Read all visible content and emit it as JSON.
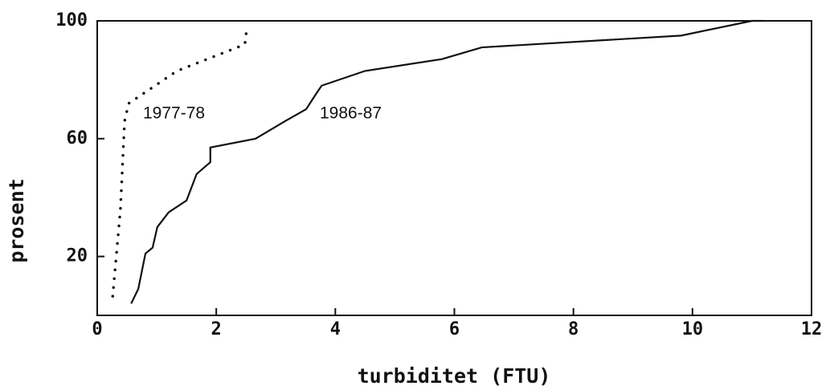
{
  "chart_data": {
    "type": "line",
    "xlabel": "turbiditet (FTU)",
    "ylabel": "prosent",
    "xlim": [
      0,
      12
    ],
    "ylim": [
      0,
      100
    ],
    "xticks": [
      0,
      2,
      4,
      6,
      8,
      10,
      12
    ],
    "yticks": [
      20,
      60,
      100
    ],
    "series": [
      {
        "name": "1977-78",
        "color": "#111111",
        "style": "dotted",
        "x": [
          0.26,
          0.39,
          0.46,
          0.53,
          1.34,
          2.48,
          2.51
        ],
        "values": [
          6.5,
          36,
          66,
          72,
          83,
          92,
          97
        ]
      },
      {
        "name": "1986-87",
        "color": "#111111",
        "style": "solid",
        "x": [
          0.57,
          0.69,
          0.81,
          0.93,
          1.01,
          1.2,
          1.5,
          1.67,
          1.9,
          1.9,
          2.66,
          3.16,
          3.51,
          3.67,
          3.77,
          4.5,
          5.79,
          6.46,
          9.81,
          11.0,
          11.2
        ],
        "values": [
          4,
          9,
          21,
          23,
          30,
          35,
          39,
          48,
          52,
          57,
          60,
          66,
          70,
          75,
          78,
          83,
          87,
          91,
          95,
          100,
          100
        ]
      }
    ]
  }
}
